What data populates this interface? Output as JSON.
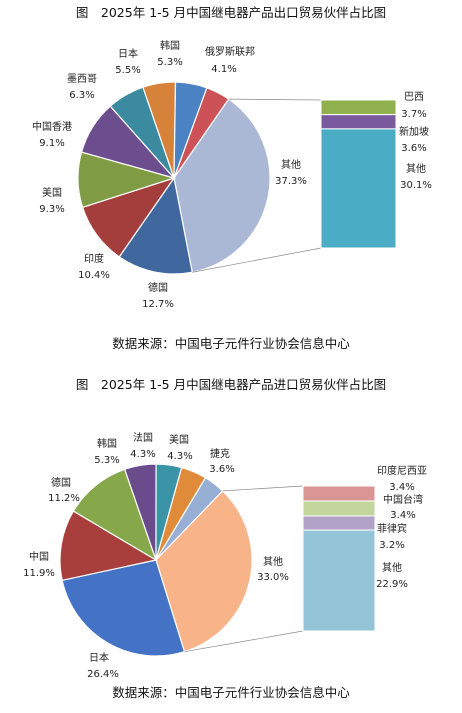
{
  "chart_data": [
    {
      "type": "pie",
      "title": "图　2025年 1-5 月中国继电器产品出口贸易伙伴占比图",
      "source": "数据来源：中国电子元件行业协会信息中心",
      "slices": [
        {
          "name": "俄罗斯联邦",
          "value": 4.1,
          "pct": "4.1%",
          "color": "#cd5257"
        },
        {
          "name": "其他",
          "value": 37.3,
          "pct": "37.3%",
          "color": "#aab8d6",
          "expanded": true
        },
        {
          "name": "德国",
          "value": 12.7,
          "pct": "12.7%",
          "color": "#41679f"
        },
        {
          "name": "印度",
          "value": 10.4,
          "pct": "10.4%",
          "color": "#a43e3c"
        },
        {
          "name": "美国",
          "value": 9.3,
          "pct": "9.3%",
          "color": "#7f9c45"
        },
        {
          "name": "中国香港",
          "value": 9.1,
          "pct": "9.1%",
          "color": "#6c4e8e"
        },
        {
          "name": "墨西哥",
          "value": 6.3,
          "pct": "6.3%",
          "color": "#3b8aa0"
        },
        {
          "name": "日本",
          "value": 5.5,
          "pct": "5.5%",
          "color": "#d6823b"
        },
        {
          "name": "韩国",
          "value": 5.3,
          "pct": "5.3%",
          "color": "#4a82c4"
        }
      ],
      "breakdown": [
        {
          "name": "巴西",
          "value": 3.7,
          "pct": "3.7%",
          "color": "#8fb04d"
        },
        {
          "name": "新加坡",
          "value": 3.6,
          "pct": "3.6%",
          "color": "#7a5a9e"
        },
        {
          "name": "其他",
          "value": 30.1,
          "pct": "30.1%",
          "color": "#4bacc6"
        }
      ]
    },
    {
      "type": "pie",
      "title": "图　2025年 1-5 月中国继电器产品进口贸易伙伴占比图",
      "source": "数据来源：中国电子元件行业协会信息中心",
      "slices": [
        {
          "name": "捷克",
          "value": 3.6,
          "pct": "3.6%",
          "color": "#97aed5"
        },
        {
          "name": "其他",
          "value": 33.0,
          "pct": "33.0%",
          "color": "#f9b389",
          "expanded": true
        },
        {
          "name": "日本",
          "value": 26.4,
          "pct": "26.4%",
          "color": "#4472c4"
        },
        {
          "name": "中国",
          "value": 11.9,
          "pct": "11.9%",
          "color": "#a93f3c"
        },
        {
          "name": "德国",
          "value": 11.2,
          "pct": "11.2%",
          "color": "#86a84a"
        },
        {
          "name": "韩国",
          "value": 5.3,
          "pct": "5.3%",
          "color": "#6a4c8c"
        },
        {
          "name": "法国",
          "value": 4.3,
          "pct": "4.3%",
          "color": "#3b93a8"
        },
        {
          "name": "美国",
          "value": 4.3,
          "pct": "4.3%",
          "color": "#e08b3a"
        }
      ],
      "breakdown": [
        {
          "name": "印度尼西亚",
          "value": 3.4,
          "pct": "3.4%",
          "color": "#d99694"
        },
        {
          "name": "中国台湾",
          "value": 3.4,
          "pct": "3.4%",
          "color": "#c3d69b"
        },
        {
          "name": "菲律宾",
          "value": 3.2,
          "pct": "3.2%",
          "color": "#b3a2c7"
        },
        {
          "name": "其他",
          "value": 22.9,
          "pct": "22.9%",
          "color": "#93c4d8"
        }
      ]
    }
  ]
}
